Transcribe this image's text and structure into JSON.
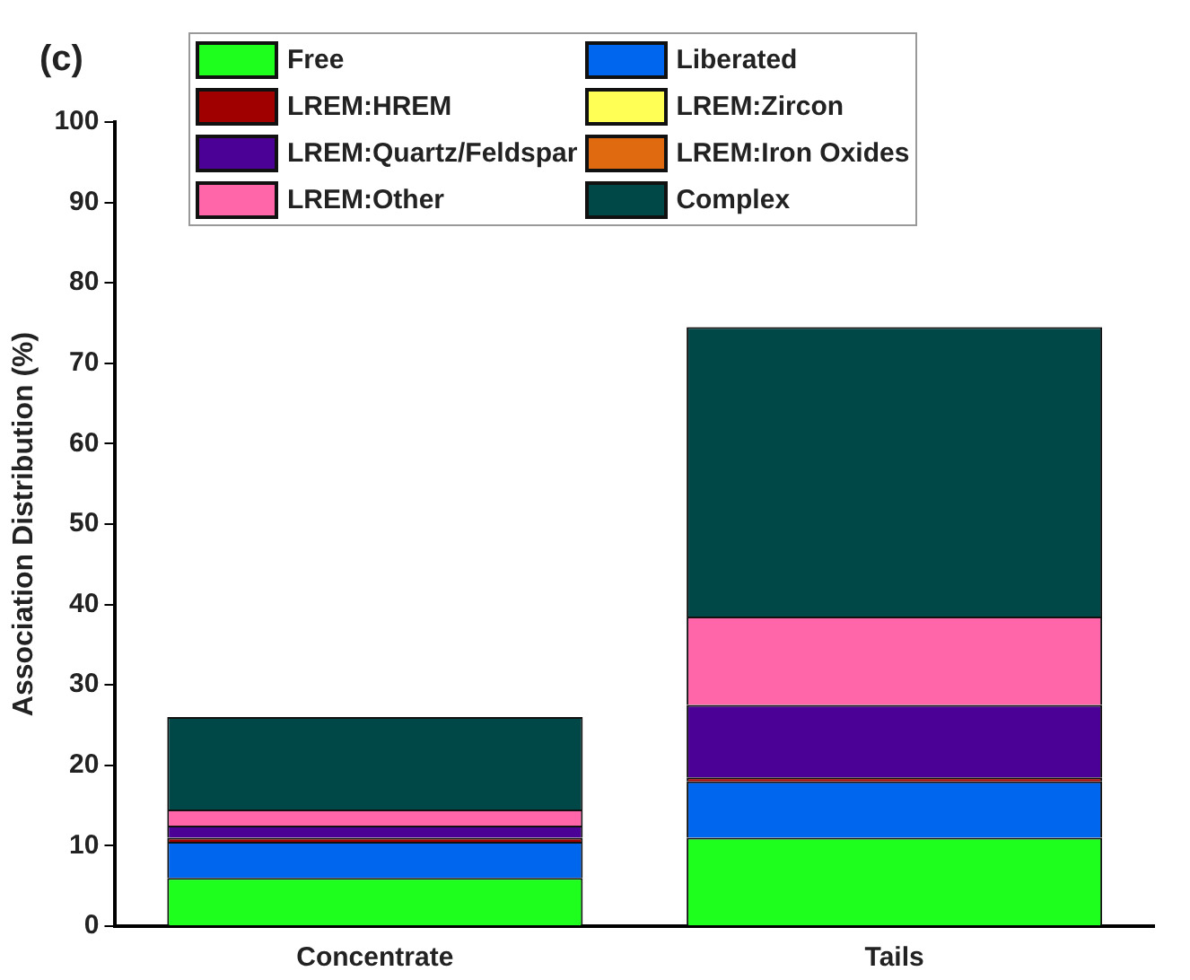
{
  "chart_data": {
    "type": "bar",
    "title": "(c)",
    "ylabel": "Association Distribution (%)",
    "categories": [
      "Concentrate",
      "Tails"
    ],
    "stacked": true,
    "ylim": [
      0,
      100
    ],
    "yticks": [
      0,
      10,
      20,
      30,
      40,
      50,
      60,
      70,
      80,
      90,
      100
    ],
    "grid": false,
    "legend": "top",
    "series": [
      {
        "name": "Free",
        "color": "#1eff1e",
        "values": [
          6,
          11
        ]
      },
      {
        "name": "Liberated",
        "color": "#0066ee",
        "values": [
          4.5,
          7
        ]
      },
      {
        "name": "LREM:HREM",
        "color": "#a00000",
        "values": [
          0.5,
          0.5
        ]
      },
      {
        "name": "LREM:Zircon",
        "color": "#ffff55",
        "values": [
          0,
          0
        ]
      },
      {
        "name": "LREM:Quartz/Feldspar",
        "color": "#4b0096",
        "values": [
          1.5,
          9
        ]
      },
      {
        "name": "LREM:Iron Oxides",
        "color": "#e06a10",
        "values": [
          0,
          0
        ]
      },
      {
        "name": "LREM:Other",
        "color": "#ff66aa",
        "values": [
          2,
          11
        ]
      },
      {
        "name": "Complex",
        "color": "#004848",
        "values": [
          11.5,
          36
        ]
      }
    ]
  }
}
